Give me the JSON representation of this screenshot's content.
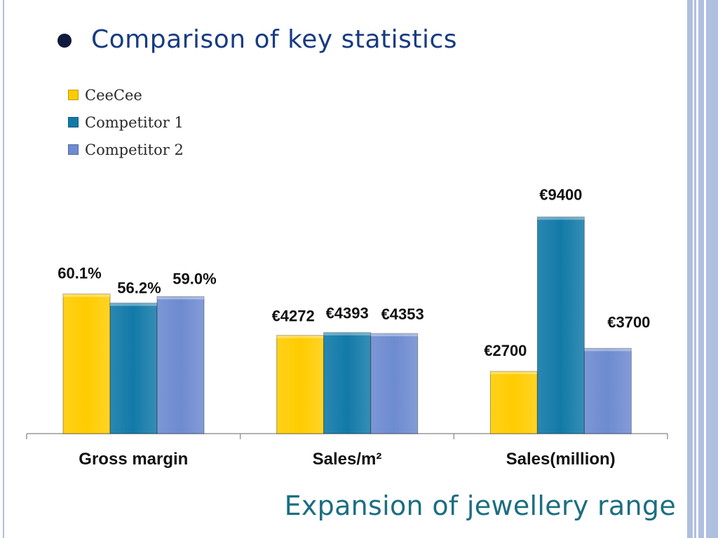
{
  "slide": {
    "heading": "Comparison of key statistics",
    "footer": "Expansion of jewellery range"
  },
  "colors": {
    "accent_heading": "#183b82",
    "footer": "#1c6e80",
    "deco_blue": "#aebfe0"
  },
  "chart_data": {
    "type": "bar",
    "categories": [
      "Gross margin",
      "Sales/m²",
      "Sales(million)"
    ],
    "series": [
      {
        "name": "CeeCee",
        "color": "#ffcc00",
        "values": [
          60.1,
          4272,
          2700
        ],
        "labels": [
          "60.1%",
          "€4272",
          "€2700"
        ]
      },
      {
        "name": "Competitor 1",
        "color": "#127aa8",
        "values": [
          56.2,
          4393,
          9400
        ],
        "labels": [
          "56.2%",
          "€4393",
          "€9400"
        ]
      },
      {
        "name": "Competitor 2",
        "color": "#6e8bd0",
        "values": [
          59.0,
          4353,
          3700
        ],
        "labels": [
          "59.0%",
          "€4353",
          "€3700"
        ]
      }
    ],
    "legend": "top-left",
    "grid": false,
    "note": "Each category group is drawn on its own scale"
  }
}
